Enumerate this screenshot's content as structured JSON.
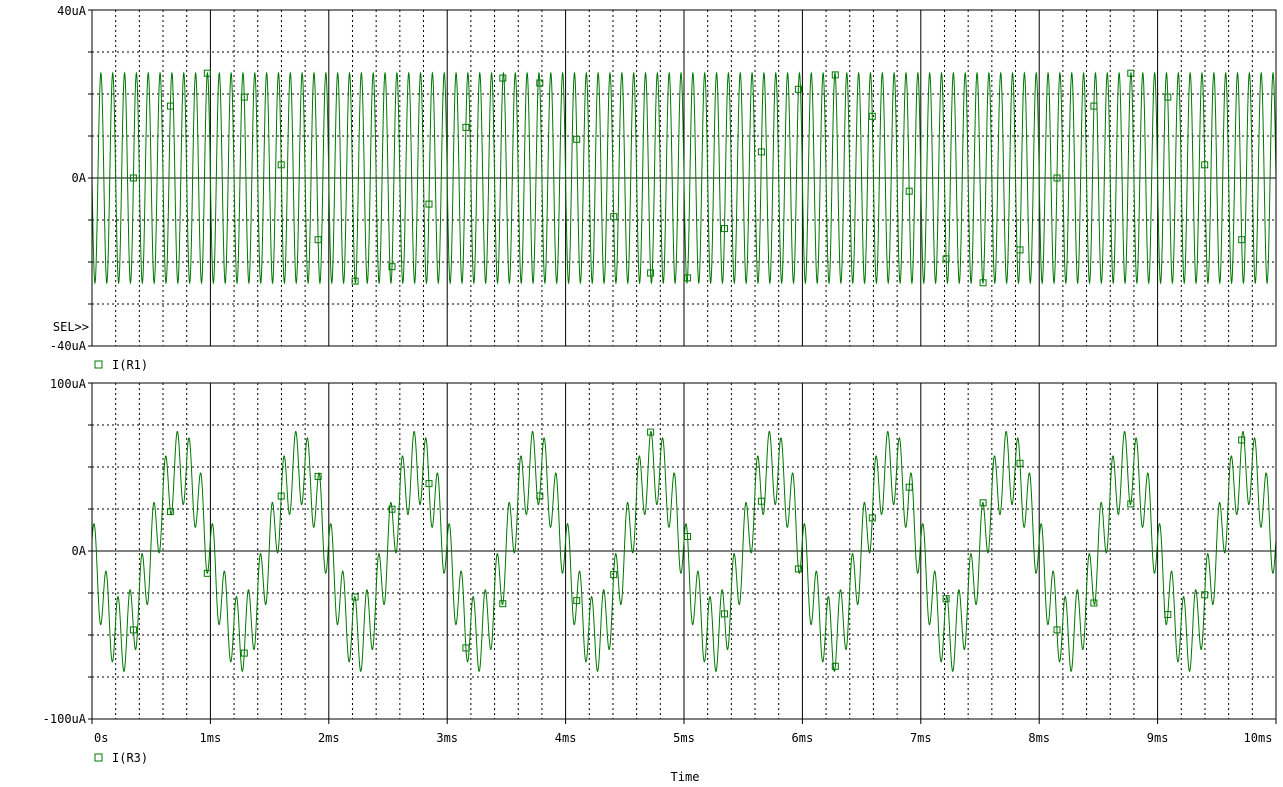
{
  "colors": {
    "trace": "#007700",
    "grid": "#000000",
    "background": "#ffffff",
    "text": "#000000"
  },
  "markers": {
    "sel": "SEL>>"
  },
  "chart_data": [
    {
      "type": "line",
      "id": "top",
      "yticks": [
        "40uA",
        "0A",
        "-40uA"
      ],
      "ylim": [
        -40,
        40
      ],
      "xlim": [
        0,
        10
      ],
      "grid": true,
      "legend": "I(R1)",
      "series": [
        {
          "name": "I(R1)",
          "amplitude": 25,
          "frequency_khz": 10,
          "unit": "uA"
        }
      ]
    },
    {
      "type": "line",
      "id": "bottom",
      "yticks": [
        "100uA",
        "0A",
        "-100uA"
      ],
      "ylim": [
        -100,
        100
      ],
      "xlim": [
        0,
        10
      ],
      "grid": true,
      "legend": "I(R3)",
      "xticks": [
        "0s",
        "1ms",
        "2ms",
        "3ms",
        "4ms",
        "5ms",
        "6ms",
        "7ms",
        "8ms",
        "9ms",
        "10ms"
      ],
      "xlabel": "Time",
      "series": [
        {
          "name": "I(R3)",
          "components": [
            {
              "amplitude": 50,
              "frequency_khz": 1,
              "unit": "uA"
            },
            {
              "amplitude": 22,
              "frequency_khz": 10,
              "unit": "uA"
            }
          ]
        }
      ]
    }
  ]
}
